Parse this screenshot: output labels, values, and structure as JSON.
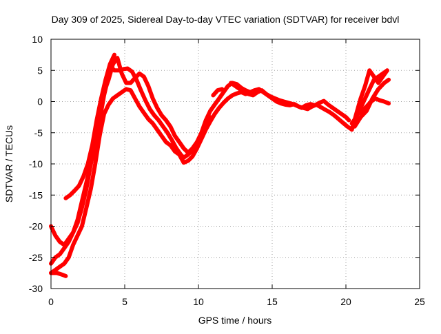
{
  "chart_data": {
    "type": "line",
    "title": "Day 309 of 2025, Sidereal Day-to-day VTEC variation (SDTVAR) for receiver bdvl",
    "xlabel": "GPS time / hours",
    "ylabel": "SDTVAR / TECUs",
    "xlim": [
      0,
      25
    ],
    "ylim": [
      -30,
      10
    ],
    "xticks": [
      0,
      5,
      10,
      15,
      20,
      25
    ],
    "yticks": [
      -30,
      -25,
      -20,
      -15,
      -10,
      -5,
      0,
      5,
      10
    ],
    "grid": true,
    "legend": "none",
    "series_color": "#ff0000",
    "series": [
      {
        "name": "arc-1",
        "x": [
          0.0,
          0.3,
          0.6,
          0.9,
          1.2,
          1.5,
          1.8,
          2.1,
          2.4,
          2.7,
          3.0,
          3.3,
          3.6,
          3.9,
          4.1,
          4.3,
          4.6,
          4.9,
          5.2,
          5.5,
          5.8,
          6.1,
          6.4,
          6.7,
          7.0,
          7.3,
          7.6,
          7.9,
          8.2,
          8.5,
          8.8,
          9.0,
          9.3,
          9.6,
          9.9,
          10.2,
          10.5,
          10.8,
          11.1,
          11.4,
          11.7,
          12.0,
          12.3,
          12.6,
          12.9,
          13.2,
          13.5
        ],
        "y": [
          -20,
          -21.5,
          -22.5,
          -23.0,
          -22.0,
          -21.0,
          -19.0,
          -16.0,
          -13.0,
          -10.0,
          -7.0,
          -3.0,
          1.0,
          4.0,
          5.5,
          5.0,
          5.0,
          5.2,
          5.3,
          4.8,
          3.5,
          1.8,
          0.2,
          -1.2,
          -2.2,
          -3.0,
          -4.0,
          -5.0,
          -6.2,
          -7.5,
          -8.5,
          -9.0,
          -8.5,
          -7.8,
          -6.5,
          -5.0,
          -3.0,
          -1.5,
          -0.5,
          0.5,
          1.5,
          2.5,
          3.0,
          2.8,
          2.2,
          1.8,
          1.5
        ]
      },
      {
        "name": "arc-2",
        "x": [
          0.0,
          0.3,
          0.6,
          0.9,
          1.2,
          1.5,
          1.8,
          2.1,
          2.4,
          2.7,
          3.0,
          3.3,
          3.6,
          3.9,
          4.2,
          4.5,
          4.8,
          5.1,
          5.4,
          5.7,
          6.0,
          6.3,
          6.6,
          6.9,
          7.2,
          7.5,
          7.8,
          8.1,
          8.4,
          8.7,
          9.0,
          9.3,
          9.6,
          9.9,
          10.2,
          10.5,
          10.8
        ],
        "y": [
          -26,
          -25.0,
          -24.5,
          -23.5,
          -22.5,
          -21.0,
          -19.5,
          -17.0,
          -14.0,
          -10.0,
          -5.0,
          -1.5,
          1.5,
          3.5,
          6.0,
          7.0,
          4.5,
          3.0,
          3.0,
          3.8,
          4.5,
          4.0,
          2.5,
          0.5,
          -1.0,
          -2.2,
          -3.0,
          -4.0,
          -5.5,
          -6.5,
          -7.5,
          -8.2,
          -7.5,
          -6.5,
          -5.2,
          -4.0,
          -2.5
        ]
      },
      {
        "name": "arc-3",
        "x": [
          0.0,
          0.3,
          0.6,
          0.9,
          1.2,
          1.5,
          1.8,
          2.1,
          2.4,
          2.7,
          3.0,
          3.3,
          3.6,
          3.9,
          4.2,
          4.5,
          4.8,
          5.1,
          5.4,
          5.7,
          6.0,
          6.3,
          6.6,
          6.9,
          7.2,
          7.5,
          7.8,
          8.1,
          8.4,
          8.7,
          9.0,
          9.3,
          9.6,
          9.9,
          10.2,
          10.5,
          10.8,
          11.1,
          11.4,
          11.7,
          12.0,
          12.3,
          12.6,
          12.9,
          13.2,
          13.5,
          13.8,
          14.1,
          14.4,
          14.7,
          15.0,
          15.3,
          15.6,
          15.9,
          16.2,
          16.5,
          16.8,
          17.1,
          17.4,
          17.7,
          18.0,
          18.3,
          18.6,
          18.9,
          19.2,
          19.5,
          19.8,
          20.1,
          20.4
        ],
        "y": [
          -27.5,
          -27.0,
          -26.5,
          -26.0,
          -25.0,
          -23.0,
          -21.5,
          -20.0,
          -17.0,
          -14.0,
          -10.0,
          -5.5,
          -2.0,
          -0.5,
          0.5,
          1.0,
          1.5,
          2.0,
          1.8,
          0.5,
          -0.8,
          -1.8,
          -2.8,
          -3.5,
          -4.5,
          -5.5,
          -6.5,
          -7.0,
          -8.0,
          -8.5,
          -9.8,
          -9.5,
          -8.8,
          -7.5,
          -6.0,
          -4.5,
          -3.2,
          -2.0,
          -1.0,
          -0.2,
          0.5,
          1.0,
          1.3,
          1.5,
          1.2,
          1.5,
          1.8,
          2.0,
          1.5,
          1.0,
          0.5,
          0.0,
          -0.3,
          -0.5,
          -0.6,
          -0.4,
          -0.8,
          -1.0,
          -1.2,
          -0.8,
          -0.5,
          -0.9,
          -1.3,
          -1.7,
          -2.2,
          -2.8,
          -3.4,
          -4.0,
          -4.5
        ]
      },
      {
        "name": "arc-4",
        "x": [
          1.0,
          1.3,
          1.6,
          1.9,
          2.2,
          2.5,
          2.8,
          3.1,
          3.4,
          3.7,
          4.0,
          4.3
        ],
        "y": [
          -15.5,
          -15.0,
          -14.3,
          -13.5,
          -12.0,
          -10.0,
          -7.0,
          -3.0,
          0.5,
          3.5,
          6.0,
          7.5
        ]
      },
      {
        "name": "arc-5",
        "x": [
          0.0,
          0.4,
          0.8,
          1.0
        ],
        "y": [
          -27.5,
          -27.5,
          -27.8,
          -28.0
        ]
      },
      {
        "name": "arc-6",
        "x": [
          11.0,
          11.3,
          11.6
        ],
        "y": [
          1.0,
          1.8,
          2.0
        ]
      },
      {
        "name": "arc-7",
        "x": [
          12.2,
          12.5,
          12.8,
          13.1,
          13.4,
          13.7,
          14.0,
          14.3,
          14.6,
          14.9,
          15.2,
          15.5,
          15.8,
          16.1,
          16.4,
          16.7,
          17.0,
          17.3,
          17.6,
          17.9,
          18.2,
          18.5,
          18.8,
          19.1,
          19.4,
          19.7,
          20.0,
          20.2
        ],
        "y": [
          3.0,
          2.5,
          2.0,
          1.5,
          1.2,
          1.0,
          1.5,
          1.8,
          1.2,
          0.8,
          0.5,
          0.2,
          0.0,
          -0.2,
          -0.4,
          -0.7,
          -1.0,
          -0.6,
          -0.4,
          -0.6,
          -0.2,
          0.1,
          -0.5,
          -1.0,
          -1.5,
          -2.0,
          -2.5,
          -3.0
        ]
      },
      {
        "name": "arc-8",
        "x": [
          20.4,
          20.7,
          21.0,
          21.3,
          21.6,
          21.9,
          22.2,
          22.5,
          22.8
        ],
        "y": [
          -3.5,
          -2.5,
          -1.0,
          0.5,
          2.0,
          3.5,
          4.0,
          4.5,
          5.0
        ]
      },
      {
        "name": "arc-9",
        "x": [
          20.4,
          20.7,
          21.0,
          21.3,
          21.6,
          21.9,
          22.2,
          22.5,
          22.8
        ],
        "y": [
          -4.5,
          -2.0,
          0.5,
          2.5,
          5.0,
          4.0,
          3.0,
          4.0,
          5.0
        ]
      },
      {
        "name": "arc-10",
        "x": [
          20.8,
          21.1,
          21.4,
          21.7,
          22.0,
          22.3,
          22.6,
          22.9
        ],
        "y": [
          -2.0,
          -1.5,
          -0.8,
          0.0,
          0.5,
          0.2,
          0.0,
          -0.3
        ]
      },
      {
        "name": "arc-11",
        "x": [
          20.6,
          21.0,
          21.4,
          21.8,
          22.2,
          22.6,
          22.9
        ],
        "y": [
          -4.0,
          -2.5,
          -1.5,
          0.5,
          2.0,
          3.0,
          3.5
        ]
      }
    ]
  }
}
